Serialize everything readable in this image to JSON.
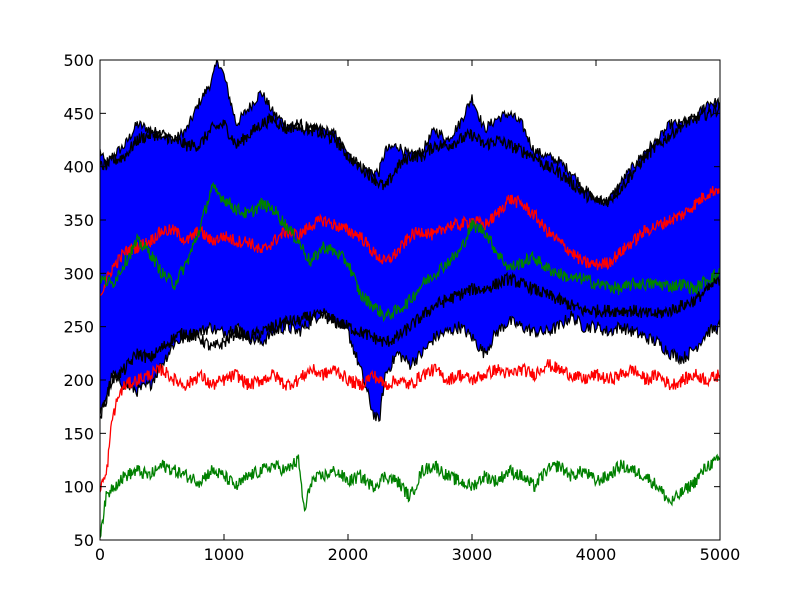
{
  "chart_data": {
    "type": "line",
    "title": "",
    "xlabel": "",
    "ylabel": "",
    "xlim": [
      0,
      5000
    ],
    "ylim": [
      50,
      500
    ],
    "xticks": [
      0,
      1000,
      2000,
      3000,
      4000,
      5000
    ],
    "yticks": [
      50,
      100,
      150,
      200,
      250,
      300,
      350,
      400,
      450,
      500
    ],
    "xtick_labels": [
      "0",
      "1000",
      "2000",
      "3000",
      "4000",
      "5000"
    ],
    "ytick_labels": [
      "50",
      "100",
      "150",
      "200",
      "250",
      "300",
      "350",
      "400",
      "450",
      "500"
    ],
    "grid": false,
    "legend": "none",
    "band": {
      "color": "#0000ff",
      "edge_color": "#000000",
      "x": [
        0,
        50,
        100,
        200,
        300,
        400,
        500,
        600,
        700,
        800,
        900,
        950,
        1000,
        1100,
        1200,
        1300,
        1400,
        1500,
        1600,
        1700,
        1800,
        1900,
        2000,
        2100,
        2200,
        2250,
        2300,
        2400,
        2500,
        2600,
        2700,
        2800,
        2900,
        3000,
        3100,
        3200,
        3300,
        3400,
        3500,
        3600,
        3700,
        3800,
        3900,
        4000,
        4100,
        4200,
        4300,
        4400,
        4500,
        4600,
        4700,
        4800,
        4900,
        5000
      ],
      "upper": [
        415,
        400,
        410,
        420,
        440,
        435,
        430,
        425,
        435,
        460,
        480,
        500,
        485,
        440,
        455,
        470,
        450,
        440,
        435,
        435,
        435,
        430,
        410,
        400,
        395,
        395,
        415,
        420,
        410,
        415,
        435,
        425,
        440,
        465,
        435,
        445,
        450,
        440,
        415,
        410,
        405,
        395,
        380,
        368,
        368,
        385,
        400,
        415,
        425,
        440,
        440,
        445,
        460,
        460
      ],
      "lower": [
        165,
        185,
        205,
        195,
        190,
        195,
        215,
        235,
        240,
        245,
        250,
        245,
        245,
        250,
        240,
        235,
        245,
        250,
        245,
        255,
        265,
        255,
        245,
        210,
        170,
        160,
        205,
        225,
        215,
        225,
        240,
        245,
        250,
        240,
        225,
        245,
        255,
        250,
        245,
        245,
        250,
        260,
        250,
        250,
        245,
        250,
        245,
        240,
        235,
        225,
        220,
        230,
        245,
        250
      ]
    },
    "series": [
      {
        "color": "#000000",
        "x": [
          0,
          100,
          200,
          300,
          400,
          500,
          600,
          700,
          800,
          900,
          1000,
          1100,
          1200,
          1300,
          1400,
          1500,
          1600,
          1700,
          1800,
          1900,
          2000,
          2100,
          2200,
          2300,
          2400,
          2500,
          2600,
          2700,
          2800,
          2900,
          3000,
          3100,
          3200,
          3300,
          3400,
          3500,
          3600,
          3700,
          3800,
          3900,
          4000,
          4100,
          4200,
          4300,
          4400,
          4500,
          4600,
          4700,
          4800,
          4900,
          5000
        ],
        "values": [
          400,
          405,
          410,
          425,
          430,
          430,
          425,
          420,
          420,
          435,
          440,
          420,
          430,
          440,
          445,
          435,
          440,
          435,
          430,
          425,
          410,
          400,
          390,
          380,
          400,
          410,
          410,
          420,
          420,
          425,
          430,
          420,
          425,
          420,
          415,
          410,
          400,
          395,
          385,
          375,
          368,
          368,
          380,
          395,
          410,
          420,
          430,
          440,
          445,
          450,
          455
        ]
      },
      {
        "color": "#000000",
        "x": [
          0,
          100,
          200,
          300,
          400,
          500,
          600,
          700,
          800,
          900,
          1000,
          1100,
          1200,
          1300,
          1400,
          1500,
          1600,
          1700,
          1800,
          1900,
          2000,
          2100,
          2200,
          2300,
          2400,
          2500,
          2600,
          2700,
          2800,
          2900,
          3000,
          3100,
          3200,
          3300,
          3400,
          3500,
          3600,
          3700,
          3800,
          3900,
          4000,
          4100,
          4200,
          4300,
          4400,
          4500,
          4600,
          4700,
          4800,
          4900,
          5000
        ],
        "values": [
          165,
          200,
          210,
          225,
          220,
          230,
          240,
          245,
          240,
          230,
          235,
          245,
          240,
          245,
          250,
          255,
          255,
          260,
          260,
          255,
          250,
          245,
          240,
          235,
          240,
          250,
          260,
          270,
          275,
          280,
          285,
          285,
          290,
          295,
          290,
          285,
          280,
          275,
          270,
          265,
          265,
          265,
          265,
          265,
          262,
          262,
          265,
          270,
          275,
          285,
          295
        ]
      },
      {
        "color": "#ff0000",
        "x": [
          0,
          100,
          200,
          300,
          400,
          500,
          600,
          700,
          800,
          900,
          1000,
          1100,
          1200,
          1300,
          1400,
          1500,
          1600,
          1700,
          1800,
          1900,
          2000,
          2100,
          2200,
          2300,
          2400,
          2500,
          2600,
          2700,
          2800,
          2900,
          3000,
          3100,
          3200,
          3300,
          3400,
          3500,
          3600,
          3700,
          3800,
          3900,
          4000,
          4100,
          4200,
          4300,
          4400,
          4500,
          4600,
          4700,
          4800,
          4900,
          5000
        ],
        "values": [
          280,
          305,
          320,
          325,
          330,
          340,
          340,
          330,
          340,
          330,
          335,
          330,
          330,
          320,
          330,
          340,
          335,
          345,
          350,
          345,
          340,
          335,
          320,
          310,
          320,
          335,
          340,
          335,
          345,
          345,
          350,
          345,
          355,
          370,
          365,
          355,
          340,
          330,
          320,
          310,
          308,
          310,
          320,
          330,
          340,
          345,
          350,
          355,
          365,
          375,
          380
        ]
      },
      {
        "color": "#008000",
        "x": [
          0,
          100,
          200,
          300,
          400,
          500,
          600,
          700,
          800,
          900,
          1000,
          1100,
          1200,
          1300,
          1400,
          1500,
          1600,
          1700,
          1800,
          1900,
          2000,
          2100,
          2200,
          2300,
          2400,
          2500,
          2600,
          2700,
          2800,
          2900,
          3000,
          3100,
          3200,
          3300,
          3400,
          3500,
          3600,
          3700,
          3800,
          3900,
          4000,
          4100,
          4200,
          4300,
          4400,
          4500,
          4600,
          4700,
          4800,
          4900,
          5000
        ],
        "values": [
          295,
          290,
          310,
          330,
          320,
          300,
          290,
          310,
          340,
          380,
          370,
          360,
          355,
          365,
          360,
          345,
          330,
          310,
          325,
          320,
          310,
          280,
          270,
          260,
          265,
          275,
          290,
          300,
          310,
          320,
          345,
          340,
          320,
          305,
          310,
          315,
          305,
          300,
          295,
          295,
          290,
          288,
          285,
          290,
          290,
          290,
          288,
          290,
          285,
          295,
          300
        ]
      },
      {
        "color": "#ff0000",
        "x": [
          0,
          50,
          100,
          150,
          200,
          300,
          400,
          500,
          600,
          700,
          800,
          900,
          1000,
          1100,
          1200,
          1300,
          1400,
          1500,
          1600,
          1700,
          1800,
          1900,
          2000,
          2100,
          2200,
          2300,
          2400,
          2500,
          2600,
          2700,
          2800,
          2900,
          3000,
          3100,
          3200,
          3300,
          3400,
          3500,
          3600,
          3700,
          3800,
          3900,
          4000,
          4100,
          4200,
          4300,
          4400,
          4500,
          4600,
          4700,
          4800,
          4900,
          5000
        ],
        "values": [
          100,
          110,
          165,
          185,
          195,
          200,
          205,
          210,
          200,
          195,
          205,
          195,
          200,
          205,
          195,
          200,
          205,
          195,
          200,
          210,
          205,
          210,
          200,
          195,
          205,
          195,
          200,
          195,
          205,
          210,
          200,
          205,
          200,
          205,
          210,
          205,
          210,
          205,
          215,
          210,
          205,
          200,
          205,
          200,
          205,
          210,
          200,
          205,
          195,
          200,
          205,
          200,
          205
        ]
      },
      {
        "color": "#008000",
        "x": [
          0,
          50,
          100,
          150,
          200,
          300,
          400,
          500,
          600,
          700,
          800,
          900,
          1000,
          1100,
          1200,
          1300,
          1400,
          1500,
          1600,
          1650,
          1700,
          1800,
          1900,
          2000,
          2100,
          2200,
          2300,
          2400,
          2500,
          2600,
          2700,
          2800,
          2900,
          3000,
          3100,
          3200,
          3300,
          3400,
          3500,
          3600,
          3700,
          3800,
          3900,
          4000,
          4100,
          4200,
          4300,
          4400,
          4500,
          4600,
          4700,
          4800,
          4900,
          5000
        ],
        "values": [
          55,
          90,
          100,
          105,
          110,
          115,
          110,
          120,
          115,
          110,
          105,
          115,
          110,
          100,
          110,
          115,
          120,
          115,
          125,
          75,
          105,
          110,
          115,
          105,
          110,
          100,
          110,
          105,
          90,
          115,
          120,
          110,
          105,
          100,
          110,
          105,
          115,
          110,
          100,
          115,
          120,
          110,
          115,
          105,
          110,
          120,
          115,
          110,
          100,
          85,
          95,
          105,
          120,
          125
        ]
      }
    ]
  }
}
